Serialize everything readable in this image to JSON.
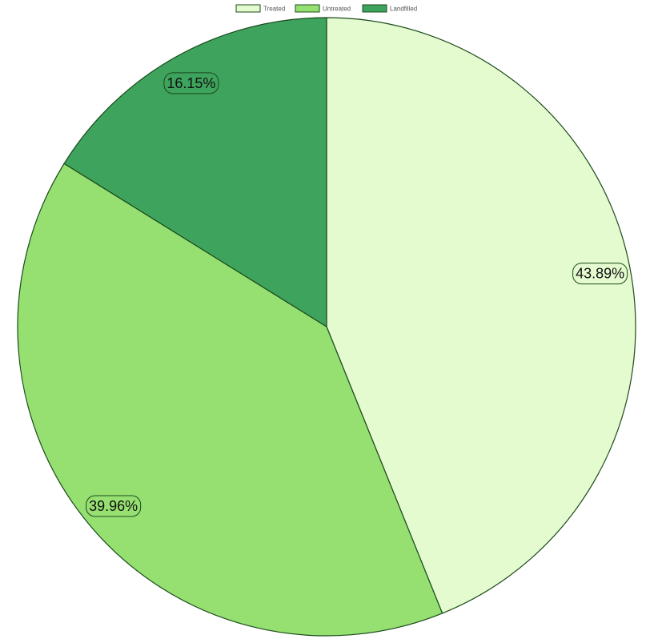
{
  "chart_data": {
    "type": "pie",
    "title": "",
    "categories": [
      "Treated",
      "Untreated",
      "Landfilled"
    ],
    "values": [
      43.89,
      39.96,
      16.15
    ],
    "labels": [
      "43.89%",
      "39.96%",
      "16.15%"
    ],
    "legend_position": "top-center",
    "start_angle": "12 o'clock",
    "direction": "clockwise"
  },
  "colors": {
    "slices": [
      "#e4facf",
      "#96e072",
      "#3da35d"
    ],
    "outline": "#1b4a1b",
    "label_background": {
      "Treated": "#e4facf",
      "Untreated": "#96e072",
      "Landfilled": "#3da35d"
    }
  }
}
